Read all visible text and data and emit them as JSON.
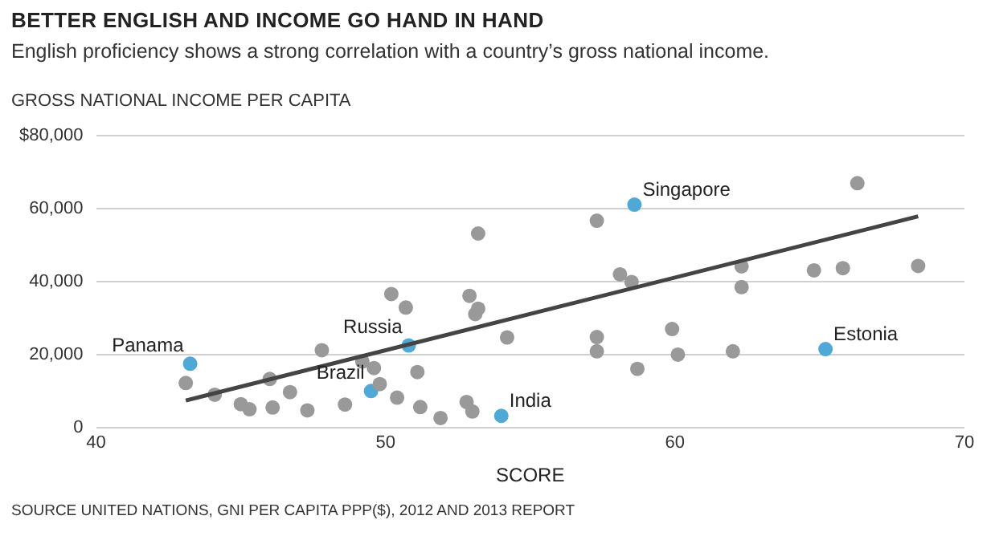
{
  "chart_data": {
    "type": "scatter",
    "title": "BETTER ENGLISH AND INCOME GO HAND IN HAND",
    "subtitle": "English proficiency shows a strong correlation with a country’s gross national income.",
    "ylabel": "GROSS NATIONAL INCOME PER CAPITA",
    "xlabel": "SCORE",
    "xlim": [
      40,
      70
    ],
    "xticks": [
      40,
      50,
      60,
      70
    ],
    "ylim": [
      0,
      80000
    ],
    "yticks": [
      {
        "value": 0,
        "label": "0"
      },
      {
        "value": 20000,
        "label": "20,000"
      },
      {
        "value": 40000,
        "label": "40,000"
      },
      {
        "value": 60000,
        "label": "60,000"
      },
      {
        "value": 80000,
        "label": "$80,000"
      }
    ],
    "grid": "y",
    "legend": false,
    "marker": "circle",
    "series": [
      {
        "type": "scatter",
        "color": "#999999",
        "x": [
          43.1,
          44.1,
          45.0,
          45.3,
          46.0,
          46.1,
          46.7,
          47.3,
          47.8,
          48.6,
          49.2,
          49.6,
          49.8,
          50.2,
          50.7,
          50.4,
          51.1,
          51.2,
          51.9,
          52.9,
          53.2,
          53.2,
          53.1,
          54.2,
          52.8,
          53.0,
          57.3,
          58.1,
          58.5,
          57.3,
          57.3,
          58.7,
          59.9,
          60.1,
          62.0,
          62.3,
          62.3,
          64.8,
          65.8,
          66.3,
          68.4
        ],
        "values": [
          12200,
          9000,
          6400,
          5000,
          13300,
          5500,
          9700,
          4700,
          21200,
          6300,
          18100,
          16300,
          11900,
          36600,
          32900,
          8200,
          15200,
          5600,
          2600,
          36100,
          53200,
          32600,
          31100,
          24700,
          7000,
          4400,
          56700,
          42000,
          39900,
          24800,
          20900,
          16100,
          27000,
          20000,
          20900,
          44200,
          38500,
          43100,
          43700,
          67000,
          44300
        ]
      },
      {
        "type": "scatter",
        "color": "#4fa8d5",
        "x": [
          43.25,
          49.5,
          50.8,
          54.0,
          58.6,
          65.2
        ],
        "values": [
          17500,
          10000,
          22500,
          3200,
          61100,
          21500
        ]
      },
      {
        "type": "line",
        "color": "#444444",
        "marker": "none",
        "x": [
          43.1,
          68.4
        ],
        "values": [
          7400,
          57900
        ]
      }
    ],
    "annotations": [
      {
        "text": "Panama",
        "x": 43.25,
        "y": 17500
      },
      {
        "text": "Brazil",
        "x": 49.5,
        "y": 10000
      },
      {
        "text": "Russia",
        "x": 50.8,
        "y": 22500
      },
      {
        "text": "India",
        "x": 54.0,
        "y": 3200
      },
      {
        "text": "Singapore",
        "x": 58.6,
        "y": 61100
      },
      {
        "text": "Estonia",
        "x": 65.2,
        "y": 21500
      },
      "SOURCE UNITED NATIONS, GNI PER CAPITA PPP($), 2012 AND 2013 REPORT"
    ]
  }
}
